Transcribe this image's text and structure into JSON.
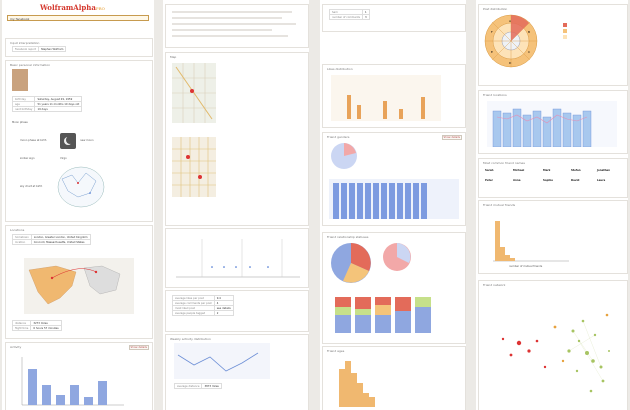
{
  "app": {
    "logo_text": "WolframAlpha",
    "logo_suffix": "PRO"
  },
  "search": {
    "value": "my facebook"
  },
  "col1": {
    "input_pod_title": "Input interpretation",
    "input_rows": [
      {
        "k": "Facebook report",
        "v": "Stephen Wolfram"
      }
    ],
    "basic_pod_title": "Basic personal information",
    "birthday_k": "birthday",
    "birthday_v": "Saturday, August 29, 1959",
    "age_k": "age",
    "age_v": "51 years 11 months 10 days old",
    "nextbday_k": "next birthday",
    "nextbday_v": "19 days",
    "moon_title": "Moon phase",
    "moon_k": "moon phase at birth",
    "moon_v": "new moon",
    "zodiac_k": "zodiac sign",
    "zodiac_v": "Virgo",
    "sky_k": "sky chart at birth",
    "location_pod_title": "Locations",
    "hometown_k": "hometown",
    "hometown_v": "London, Greater London, United Kingdom",
    "location_k": "location",
    "location_v": "Concord, Massachusetts, United States",
    "distance_k": "distance",
    "distance_v": "3273 miles",
    "flight_k": "flight time",
    "flight_v": "6 hours 57 minutes",
    "activity_pod_title": "Activity",
    "activity_btn": "Show details"
  },
  "col2": {
    "map_pod_title": "Map",
    "stats_rows": [
      {
        "k": "average likes per post",
        "v": "9.4"
      },
      {
        "k": "average comments per post",
        "v": "4"
      },
      {
        "k": "most liked post",
        "v": "see details"
      },
      {
        "k": "average people tagged",
        "v": "2"
      }
    ],
    "weekly_pod_title": "Weekly activity distribution",
    "avg_distance_k": "average distance",
    "avg_distance_v": "3873 miles"
  },
  "col3": {
    "top_rows": [
      {
        "k": "Sam",
        "v": "1"
      },
      {
        "k": "number of comments",
        "v": "3"
      }
    ],
    "likes_pod_title": "Likes distribution",
    "friends_pod_title": "Friend genders",
    "friends_btn": "Show details",
    "network_pod_title": "Friend relationship statuses",
    "ages_pod_title": "Friend ages"
  },
  "col4": {
    "wheel_title": "Post distribution",
    "wheel_letters": [
      "A",
      "B",
      "C",
      "D",
      "E",
      "F"
    ],
    "bars_pod_title": "Friend locations",
    "friends_list_title": "Most common friend names",
    "friends_list": [
      "Sarah",
      "Michael",
      "Mark",
      "Stefan",
      "Jonathan",
      "Peter",
      "Anna",
      "Sophie",
      "David",
      "Laura"
    ],
    "hist_pod_title": "Friend mutual friends",
    "hist_xlabel": "number of mutual friends",
    "network_pod_title": "Friend network"
  },
  "colors": {
    "accent": "#d4372c",
    "orange": "#f0b870",
    "blue": "#8fa7e0",
    "lightblue": "#cbd6f3"
  }
}
